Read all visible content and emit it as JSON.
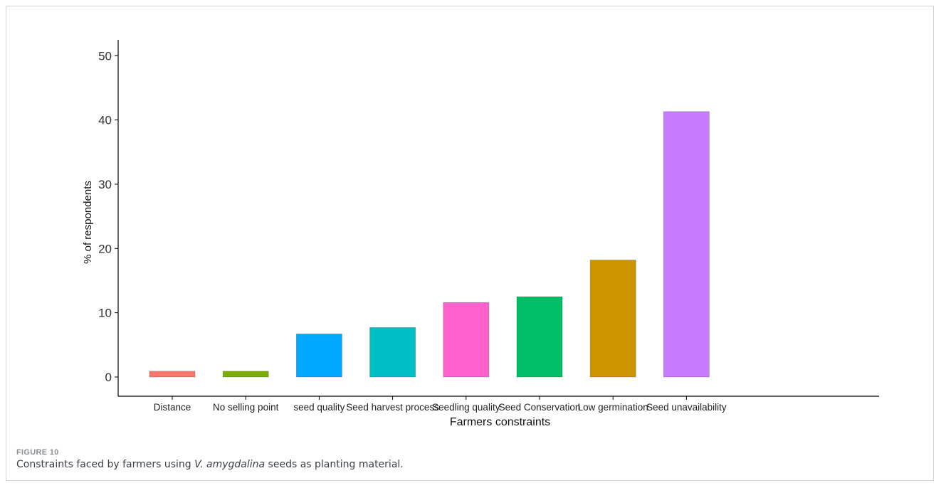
{
  "chart_data": {
    "type": "bar",
    "categories": [
      "Distance",
      "No selling point",
      "seed quality",
      "Seed harvest process",
      "Seedling quality",
      "Seed Conservation",
      "Low germination",
      "Seed unavailability"
    ],
    "values": [
      0.9,
      0.9,
      6.7,
      7.7,
      11.6,
      12.5,
      18.2,
      41.3
    ],
    "colors": [
      "#F8766D",
      "#7CAE00",
      "#00A9FF",
      "#00BFC4",
      "#FF61CC",
      "#00BE67",
      "#CD9600",
      "#C77CFF"
    ],
    "xlabel": "Farmers constraints",
    "ylabel": "% of respondents",
    "ylim": [
      0,
      52
    ],
    "yticks": [
      0,
      10,
      20,
      30,
      40,
      50
    ],
    "grid": false,
    "legend": "none"
  },
  "caption": {
    "label": "FIGURE 10",
    "text_before": "Constraints faced by farmers using ",
    "text_italic": "V. amygdalina",
    "text_after": " seeds as planting material."
  }
}
